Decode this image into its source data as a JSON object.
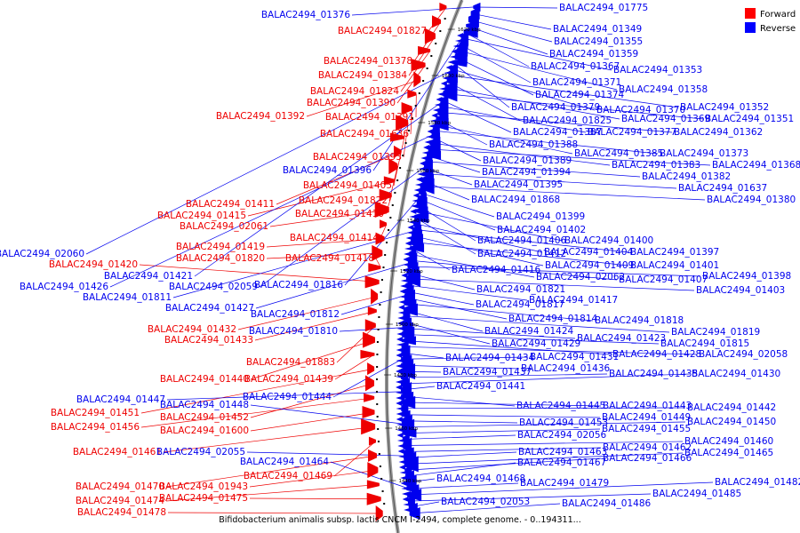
{
  "caption": "Bifidobacterium animalis subsp. lactis CNCM I-2494, complete genome. - 0..194311...",
  "legend": [
    {
      "label": "Forward",
      "color": "#ff0000"
    },
    {
      "label": "Reverse",
      "color": "#0000ff"
    }
  ],
  "colors": {
    "forward": "#ee0000",
    "reverse": "#0000ee",
    "backbone": "#808080"
  },
  "ticks": [
    "1620 kbp",
    "1600 kbp",
    "1580 kbp",
    "1560 kbp",
    "1540 kbp",
    "1520 kbp",
    "1500 kbp",
    "1480 kbp",
    "1460 kbp",
    "1440 kbp"
  ],
  "forward_genes": [
    "BALAC2494_01827",
    "BALAC2494_01378",
    "BALAC2494_01384",
    "BALAC2494_01824",
    "BALAC2494_01390",
    "BALAC2494_01392",
    "BALAC2494_01391",
    "BALAC2494_01636",
    "BALAC2494_01393",
    "BALAC2494_01405",
    "BALAC2494_01411",
    "BALAC2494_01822",
    "BALAC2494_01415",
    "BALAC2494_01410",
    "BALAC2494_02061",
    "BALAC2494_01414",
    "BALAC2494_01419",
    "BALAC2494_01820",
    "BALAC2494_01418",
    "BALAC2494_01420",
    "BALAC2494_01432",
    "BALAC2494_01433",
    "BALAC2494_01883",
    "BALAC2494_01440",
    "BALAC2494_01439",
    "BALAC2494_01451",
    "BALAC2494_01452",
    "BALAC2494_01456",
    "BALAC2494_01600",
    "BALAC2494_01461",
    "BALAC2494_01469",
    "BALAC2494_01470",
    "BALAC2494_01943",
    "BALAC2494_01474",
    "BALAC2494_01475",
    "BALAC2494_01478"
  ],
  "reverse_left_genes": [
    "BALAC2494_01376",
    "BALAC2494_01396",
    "BALAC2494_02060",
    "BALAC2494_01421",
    "BALAC2494_01426",
    "BALAC2494_02059",
    "BALAC2494_01816",
    "BALAC2494_01811",
    "BALAC2494_01427",
    "BALAC2494_01812",
    "BALAC2494_01810",
    "BALAC2494_01444",
    "BALAC2494_01447",
    "BALAC2494_01448",
    "BALAC2494_02055",
    "BALAC2494_01464"
  ],
  "reverse_right_genes": [
    "BALAC2494_01775",
    "BALAC2494_01349",
    "BALAC2494_01355",
    "BALAC2494_01359",
    "BALAC2494_01367",
    "BALAC2494_01353",
    "BALAC2494_01371",
    "BALAC2494_01358",
    "BALAC2494_01374",
    "BALAC2494_01379",
    "BALAC2494_01370",
    "BALAC2494_01352",
    "BALAC2494_01825",
    "BALAC2494_01369",
    "BALAC2494_01351",
    "BALAC2494_01387",
    "BALAC2494_01377",
    "BALAC2494_01362",
    "BALAC2494_01388",
    "BALAC2494_01385",
    "BALAC2494_01373",
    "BALAC2494_01389",
    "BALAC2494_01383",
    "BALAC2494_01368",
    "BALAC2494_01394",
    "BALAC2494_01382",
    "BALAC2494_01395",
    "BALAC2494_01637",
    "BALAC2494_01868",
    "BALAC2494_01380",
    "BALAC2494_01399",
    "BALAC2494_01402",
    "BALAC2494_01406",
    "BALAC2494_01400",
    "BALAC2494_01412",
    "BALAC2494_01404",
    "BALAC2494_01397",
    "BALAC2494_01409",
    "BALAC2494_01401",
    "BALAC2494_01416",
    "BALAC2494_02062",
    "BALAC2494_01407",
    "BALAC2494_01398",
    "BALAC2494_01821",
    "BALAC2494_01403",
    "BALAC2494_01417",
    "BALAC2494_01817",
    "BALAC2494_01814",
    "BALAC2494_01818",
    "BALAC2494_01424",
    "BALAC2494_01819",
    "BALAC2494_01429",
    "BALAC2494_01423",
    "BALAC2494_01815",
    "BALAC2494_01428",
    "BALAC2494_02058",
    "BALAC2494_01434",
    "BALAC2494_01431",
    "BALAC2494_01436",
    "BALAC2494_01437",
    "BALAC2494_01435",
    "BALAC2494_01430",
    "BALAC2494_01441",
    "BALAC2494_01445",
    "BALAC2494_01443",
    "BALAC2494_01442",
    "BALAC2494_01449",
    "BALAC2494_01453",
    "BALAC2494_01450",
    "BALAC2494_01455",
    "BALAC2494_02056",
    "BALAC2494_01460",
    "BALAC2494_01462",
    "BALAC2494_01463",
    "BALAC2494_01465",
    "BALAC2494_01466",
    "BALAC2494_01467",
    "BALAC2494_01468",
    "BALAC2494_01479",
    "BALAC2494_01482",
    "BALAC2494_01485",
    "BALAC2494_02053",
    "BALAC2494_01486"
  ]
}
